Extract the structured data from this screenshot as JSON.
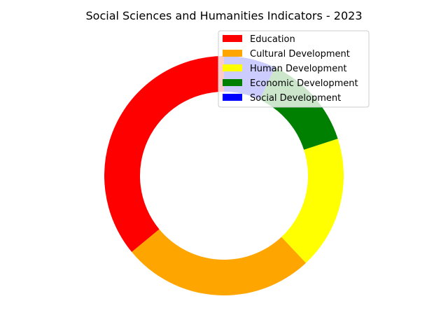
{
  "chart_data": {
    "type": "pie",
    "style": "donut",
    "title": "Social Sciences and Humanities Indicators - 2023",
    "categories": [
      "Education",
      "Cultural Development",
      "Human Development",
      "Economic Development",
      "Social Development"
    ],
    "values": [
      36,
      26,
      18,
      13,
      7
    ],
    "colors": [
      "#ff0000",
      "#ffa500",
      "#ffff00",
      "#008000",
      "#0000ff"
    ],
    "legend": "top-right"
  }
}
